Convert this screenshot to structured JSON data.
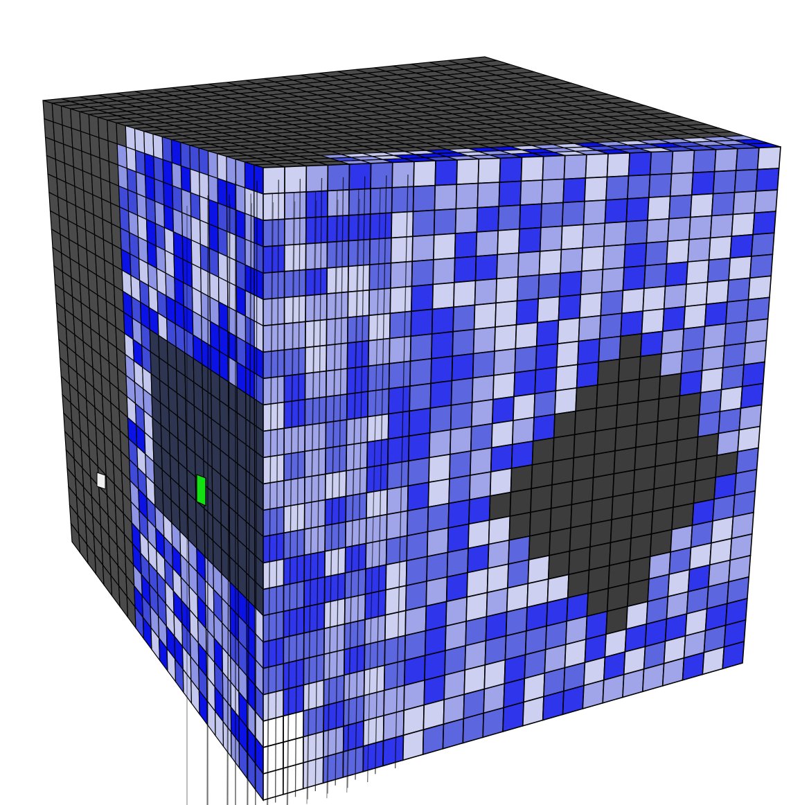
{
  "scene": {
    "kind": "3d-voxel-grid-render",
    "grid_resolution": 24,
    "background_color": "#ffffff",
    "grid_line_color": "#000000",
    "colors": {
      "solid_dark": "#4a4a4a",
      "solid_dark_right": "#3c3c3c",
      "blue_saturated": "#0a12e6",
      "blue_medium": "#3f4bd8",
      "blue_light": "#8e95e4",
      "blue_pale": "#c4c8ee",
      "highlight_green": "#12e012",
      "highlight_white": "#f0f0f0"
    },
    "faces": [
      "top",
      "left",
      "right"
    ],
    "highlighted_cells": [
      {
        "name": "green-selected-cell",
        "color": "#12e012"
      },
      {
        "name": "white-marker-cell",
        "color": "#f0f0f0"
      }
    ]
  }
}
